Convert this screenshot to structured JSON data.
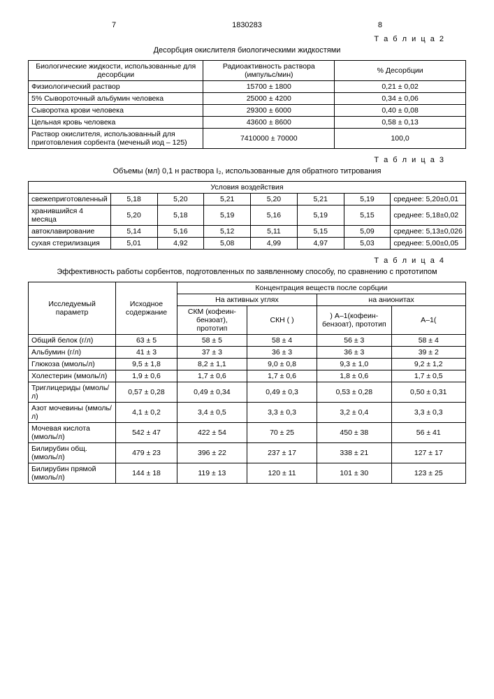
{
  "header": {
    "pgleft": "7",
    "docnum": "1830283",
    "pgright": "8"
  },
  "table2": {
    "label": "Т а б л и ц а 2",
    "caption": "Десорбция окислителя биологическими жидкостями",
    "col1": "Биологические жидкости, использованные для десорбции",
    "col2": "Радиоактивность раствора (импульс/мин)",
    "col3": "% Десорбции",
    "r1c1": "Физиологический раствор",
    "r1c2": "15700 ± 1800",
    "r1c3": "0,21 ± 0,02",
    "r2c1": "5% Сывороточный альбумин человека",
    "r2c2": "25000 ± 4200",
    "r2c3": "0,34 ± 0,06",
    "r3c1": "Сыворотка крови человека",
    "r3c2": "29300 ± 6000",
    "r3c3": "0,40 ± 0,08",
    "r4c1": "Цельная кровь человека",
    "r4c2": "43600 ± 8600",
    "r4c3": "0,58 ± 0,13",
    "r5c1": "Раствор окислителя, использованный для приготовления сорбента (меченый иод – 125)",
    "r5c2": "7410000 ± 70000",
    "r5c3": "100,0"
  },
  "table3": {
    "label": "Т а б л и ц а 3",
    "caption": "Объемы (мл) 0,1 н раствора I₂, использованные для обратного титрования",
    "header": "Условия воздействия",
    "r1lab": "свежеприготовленный",
    "r1v1": "5,18",
    "r1v2": "5,20",
    "r1v3": "5,21",
    "r1v4": "5,20",
    "r1v5": "5,21",
    "r1v6": "5,19",
    "r1m": "среднее: 5,20±0,01",
    "r2lab": "хранившийся 4 месяца",
    "r2v1": "5,20",
    "r2v2": "5,18",
    "r2v3": "5,19",
    "r2v4": "5,16",
    "r2v5": "5,19",
    "r2v6": "5,15",
    "r2m": "среднее: 5,18±0,02",
    "r3lab": "автоклавирование",
    "r3v1": "5,14",
    "r3v2": "5,16",
    "r3v3": "5,12",
    "r3v4": "5,11",
    "r3v5": "5,15",
    "r3v6": "5,09",
    "r3m": "среднее: 5,13±0,026",
    "r4lab": "сухая стерилизация",
    "r4v1": "5,01",
    "r4v2": "4,92",
    "r4v3": "5,08",
    "r4v4": "4,99",
    "r4v5": "4,97",
    "r4v6": "5,03",
    "r4m": "среднее: 5,00±0,05"
  },
  "table4": {
    "label": "Т а б л и ц а 4",
    "caption": "Эффективность работы сорбентов, подготовленных по заявленному способу, по сравнению с прототипом",
    "h_param": "Исследуемый параметр",
    "h_init": "Исходное содержание",
    "h_conc": "Концентрация веществ после сорбции",
    "h_act": "На активных углях",
    "h_an": "на анионитах",
    "h_skm": "СКМ (кофеин-бензоат), прототип",
    "h_skn": "СКН (   )",
    "h_a1p": ") А–1(кофеин-бензоат), прототип",
    "h_a1": "А–1(",
    "rows": [
      {
        "p": "Общий белок (г/л)",
        "i": "63 ± 5",
        "a": "58 ± 5",
        "b": "58 ± 4",
        "c": "56 ± 3",
        "d": "58 ± 4"
      },
      {
        "p": "Альбумин (г/л)",
        "i": "41 ± 3",
        "a": "37 ± 3",
        "b": "36 ± 3",
        "c": "36 ± 3",
        "d": "39 ± 2"
      },
      {
        "p": "Глюкоза (ммоль/л)",
        "i": "9,5 ± 1,8",
        "a": "8,2 ± 1,1",
        "b": "9,0 ± 0,8",
        "c": "9,3 ± 1,0",
        "d": "9,2 ± 1,2"
      },
      {
        "p": "Холестерин (ммоль/л)",
        "i": "1,9 ± 0,6",
        "a": "1,7 ± 0,6",
        "b": "1,7 ± 0,6",
        "c": "1,8 ± 0,6",
        "d": "1,7 ± 0,5"
      },
      {
        "p": "Триглицериды (ммоль/л)",
        "i": "0,57 ± 0,28",
        "a": "0,49 ± 0,34",
        "b": "0,49 ± 0,3",
        "c": "0,53 ± 0,28",
        "d": "0,50 ± 0,31"
      },
      {
        "p": "Азот мочевины (ммоль/л)",
        "i": "4,1 ± 0,2",
        "a": "3,4 ± 0,5",
        "b": "3,3 ± 0,3",
        "c": "3,2 ± 0,4",
        "d": "3,3 ± 0,3"
      },
      {
        "p": "Мочевая кислота (ммоль/л)",
        "i": "542 ± 47",
        "a": "422 ± 54",
        "b": "70 ± 25",
        "c": "450 ± 38",
        "d": "56 ± 41"
      },
      {
        "p": "Билирубин общ. (ммоль/л)",
        "i": "479 ± 23",
        "a": "396 ± 22",
        "b": "237 ± 17",
        "c": "338 ± 21",
        "d": "127 ± 17"
      },
      {
        "p": "Билирубин прямой (ммоль/л)",
        "i": "144 ± 18",
        "a": "119 ± 13",
        "b": "120 ± 11",
        "c": "101 ± 30",
        "d": "123 ± 25"
      }
    ]
  }
}
